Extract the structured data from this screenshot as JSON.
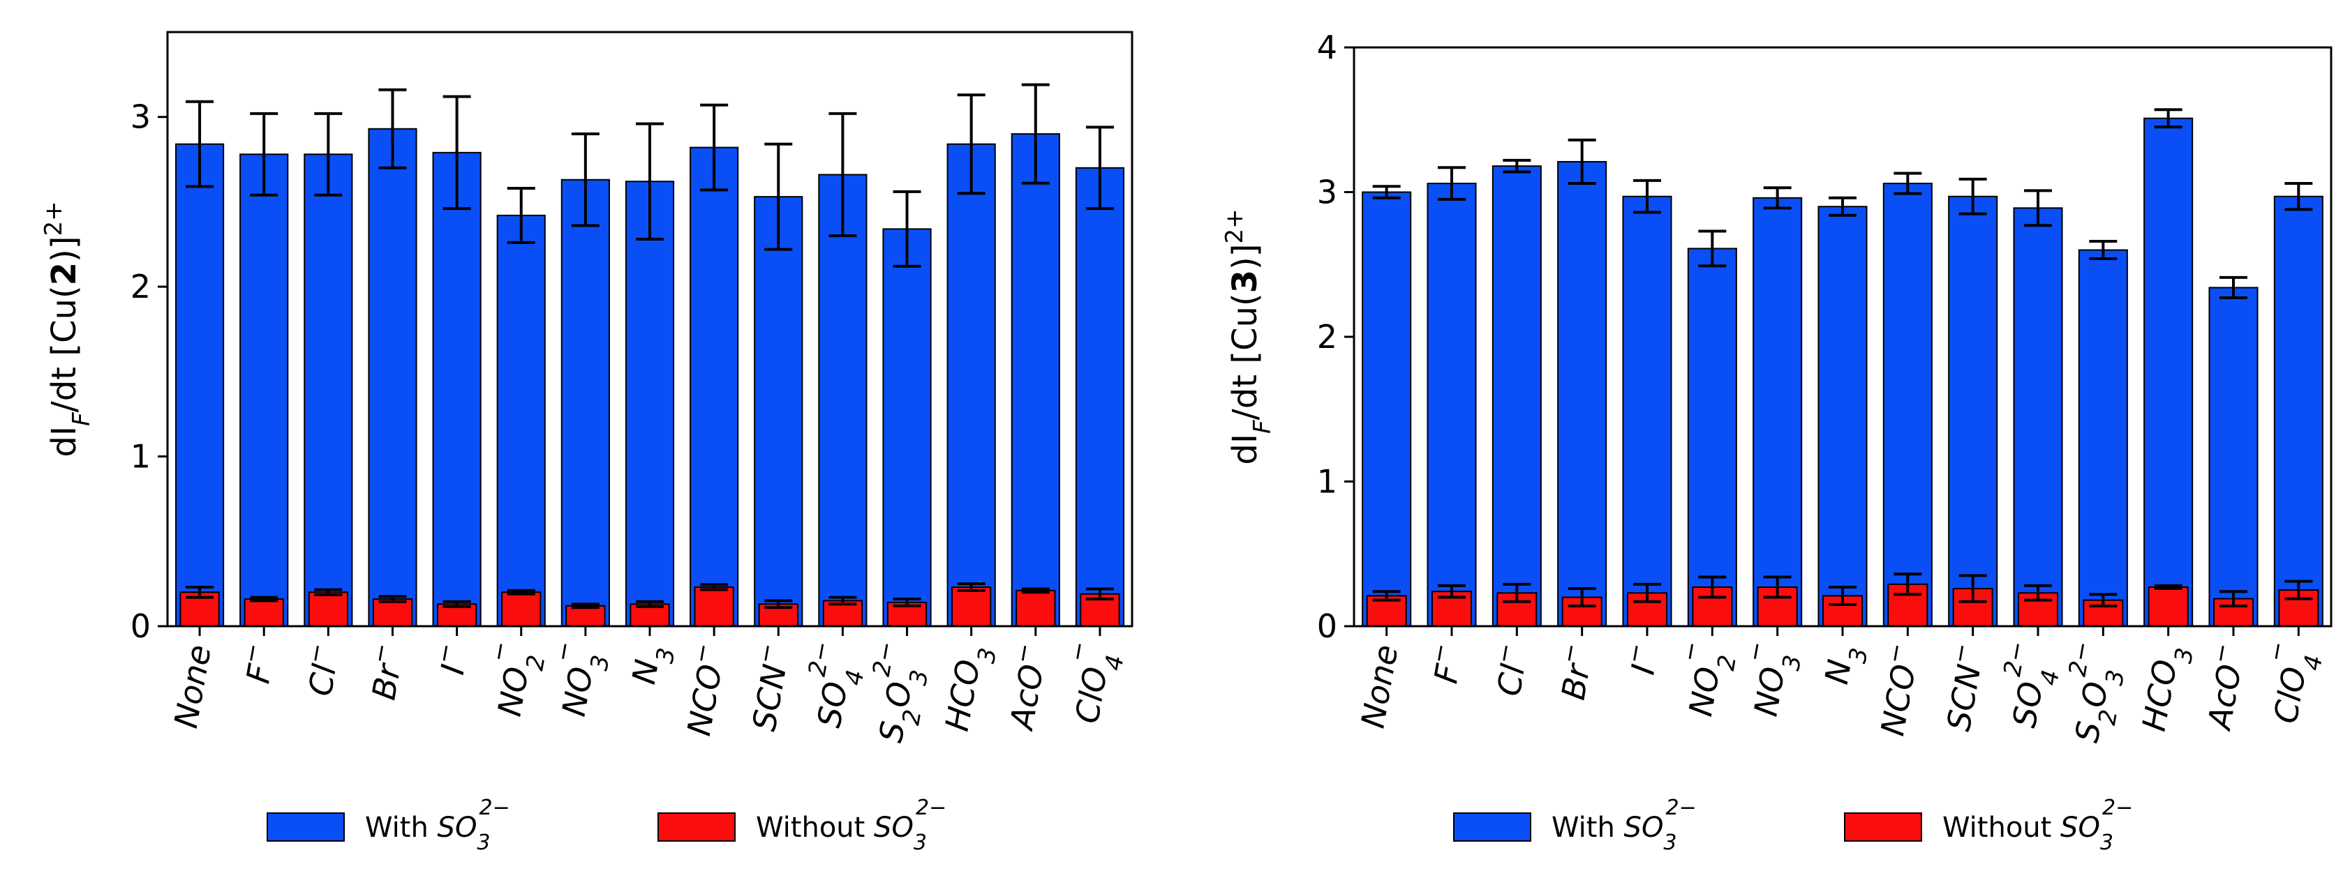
{
  "legend": {
    "with_label": "With SO",
    "without_label": "Without SO",
    "ion_sub": "3",
    "ion_sup": "2−"
  },
  "colors": {
    "with": "#0a4ff5",
    "without": "#fb0d0d",
    "edge": "#000000",
    "error": "#000000"
  },
  "chart_data": [
    {
      "type": "bar",
      "ylabel": {
        "prefix": "dI",
        "sub": "F",
        "mid": "/dt [Cu(",
        "bold": "2",
        "end": ")]",
        "sup": "2+"
      },
      "ylim": [
        0,
        3.5
      ],
      "yticks": [
        0,
        1,
        2,
        3
      ],
      "categories": [
        "None",
        "F−",
        "Cl−",
        "Br−",
        "I−",
        "NO2−",
        "NO3−",
        "N3",
        "NCO−",
        "SCN−",
        "SO42−",
        "S2O32−",
        "HCO3",
        "AcO−",
        "ClO4−"
      ],
      "series": [
        {
          "name": "With SO3 2−",
          "values": [
            2.84,
            2.78,
            2.78,
            2.93,
            2.79,
            2.42,
            2.63,
            2.62,
            2.82,
            2.53,
            2.66,
            2.34,
            2.84,
            2.9,
            2.7
          ],
          "errors": [
            0.25,
            0.24,
            0.24,
            0.23,
            0.33,
            0.16,
            0.27,
            0.34,
            0.25,
            0.31,
            0.36,
            0.22,
            0.29,
            0.29,
            0.24
          ]
        },
        {
          "name": "Without SO3 2−",
          "values": [
            0.2,
            0.16,
            0.2,
            0.16,
            0.13,
            0.2,
            0.12,
            0.13,
            0.23,
            0.13,
            0.15,
            0.14,
            0.23,
            0.21,
            0.19
          ],
          "errors": [
            0.03,
            0.01,
            0.015,
            0.015,
            0.015,
            0.01,
            0.01,
            0.015,
            0.015,
            0.02,
            0.02,
            0.02,
            0.02,
            0.01,
            0.03
          ]
        }
      ],
      "categories_display": [
        {
          "base": "None"
        },
        {
          "base": "F",
          "sup": "−"
        },
        {
          "base": "Cl",
          "sup": "−"
        },
        {
          "base": "Br",
          "sup": "−"
        },
        {
          "base": "I",
          "sup": "−"
        },
        {
          "base": "NO",
          "sub": "2",
          "sup": "−"
        },
        {
          "base": "NO",
          "sub": "3",
          "sup": "−"
        },
        {
          "base": "N",
          "sub": "3"
        },
        {
          "base": "NCO",
          "sup": "−"
        },
        {
          "base": "SCN",
          "sup": "−"
        },
        {
          "base": "SO",
          "sub": "4",
          "sup": "2−"
        },
        {
          "base": "S",
          "sub": "2",
          "base2": "O",
          "sub2": "3",
          "sup": "2−"
        },
        {
          "base": "HCO",
          "sub": "3"
        },
        {
          "base": "AcO",
          "sup": "−"
        },
        {
          "base": "ClO",
          "sub": "4",
          "sup": "−"
        }
      ]
    },
    {
      "type": "bar",
      "ylabel": {
        "prefix": "dI",
        "sub": "F",
        "mid": "/dt [Cu(",
        "bold": "3",
        "end": ")]",
        "sup": "2+"
      },
      "ylim": [
        0,
        4
      ],
      "yticks": [
        0,
        1,
        2,
        3,
        4
      ],
      "categories": [
        "None",
        "F−",
        "Cl−",
        "Br−",
        "I−",
        "NO2−",
        "NO3−",
        "N3",
        "NCO−",
        "SCN−",
        "SO42−",
        "S2O32−",
        "HCO3",
        "AcO−",
        "ClO4−"
      ],
      "series": [
        {
          "name": "With SO3 2−",
          "values": [
            3.0,
            3.06,
            3.18,
            3.21,
            2.97,
            2.61,
            2.96,
            2.9,
            3.06,
            2.97,
            2.89,
            2.6,
            3.51,
            2.34,
            2.97
          ],
          "errors": [
            0.04,
            0.11,
            0.04,
            0.15,
            0.11,
            0.12,
            0.07,
            0.06,
            0.07,
            0.12,
            0.12,
            0.06,
            0.06,
            0.07,
            0.09
          ]
        },
        {
          "name": "Without SO3 2−",
          "values": [
            0.21,
            0.24,
            0.23,
            0.2,
            0.23,
            0.27,
            0.27,
            0.21,
            0.29,
            0.26,
            0.23,
            0.18,
            0.27,
            0.19,
            0.25
          ],
          "errors": [
            0.03,
            0.04,
            0.06,
            0.06,
            0.06,
            0.07,
            0.07,
            0.06,
            0.07,
            0.09,
            0.05,
            0.04,
            0.01,
            0.05,
            0.06
          ]
        }
      ],
      "categories_display": [
        {
          "base": "None"
        },
        {
          "base": "F",
          "sup": "−"
        },
        {
          "base": "Cl",
          "sup": "−"
        },
        {
          "base": "Br",
          "sup": "−"
        },
        {
          "base": "I",
          "sup": "−"
        },
        {
          "base": "NO",
          "sub": "2",
          "sup": "−"
        },
        {
          "base": "NO",
          "sub": "3",
          "sup": "−"
        },
        {
          "base": "N",
          "sub": "3"
        },
        {
          "base": "NCO",
          "sup": "−"
        },
        {
          "base": "SCN",
          "sup": "−"
        },
        {
          "base": "SO",
          "sub": "4",
          "sup": "2−"
        },
        {
          "base": "S",
          "sub": "2",
          "base2": "O",
          "sub2": "3",
          "sup": "2−"
        },
        {
          "base": "HCO",
          "sub": "3"
        },
        {
          "base": "AcO",
          "sup": "−"
        },
        {
          "base": "ClO",
          "sub": "4",
          "sup": "−"
        }
      ]
    }
  ]
}
